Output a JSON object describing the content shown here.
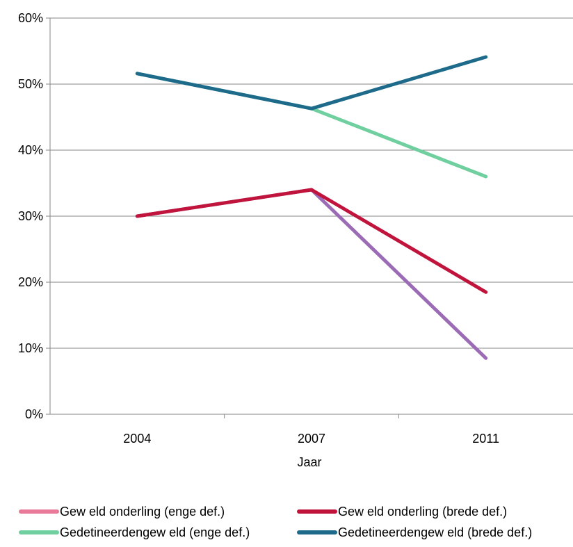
{
  "chart_data": {
    "type": "line",
    "title": "",
    "xlabel": "Jaar",
    "ylabel": "",
    "categories": [
      "2004",
      "2007",
      "2011"
    ],
    "y_ticks": [
      "0%",
      "10%",
      "20%",
      "30%",
      "40%",
      "50%",
      "60%"
    ],
    "ylim": [
      0,
      60
    ],
    "grid": true,
    "legend_position": "bottom",
    "series": [
      {
        "name": "Gew eld onderling (enge def.)",
        "color": "#9b6bb5",
        "legend_color": "#e87a9a",
        "values": [
          30,
          34,
          8.5
        ]
      },
      {
        "name": "Gew eld onderling (brede def.)",
        "color": "#c0143c",
        "legend_color": "#c0143c",
        "values": [
          30,
          34,
          18.5
        ]
      },
      {
        "name": "Gedetineerdengew eld (enge def.)",
        "color": "#6fcf9f",
        "legend_color": "#6fcf9f",
        "values": [
          51.6,
          46.3,
          36
        ]
      },
      {
        "name": "Gedetineerdengew eld (brede def.)",
        "color": "#1d6a8a",
        "legend_color": "#1d6a8a",
        "values": [
          51.6,
          46.3,
          54.1
        ]
      }
    ]
  }
}
